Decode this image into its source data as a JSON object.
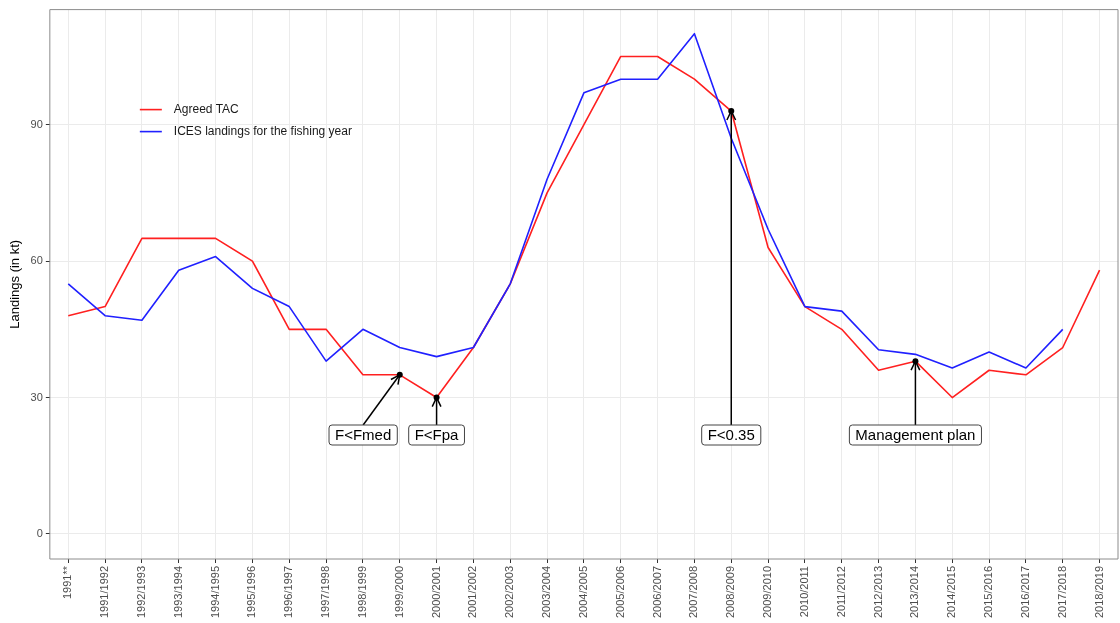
{
  "chart_data": {
    "type": "line",
    "ylabel": "Landings (in kt)",
    "categories": [
      "1991**",
      "1991/1992",
      "1992/1993",
      "1993/1994",
      "1994/1995",
      "1995/1996",
      "1996/1997",
      "1997/1998",
      "1998/1999",
      "1999/2000",
      "2000/2001",
      "2001/2002",
      "2002/2003",
      "2003/2004",
      "2004/2005",
      "2005/2006",
      "2006/2007",
      "2007/2008",
      "2008/2009",
      "2009/2010",
      "2010/2011",
      "2011/2012",
      "2012/2013",
      "2013/2014",
      "2014/2015",
      "2015/2016",
      "2016/2017",
      "2017/2018",
      "2018/2019"
    ],
    "series": [
      {
        "name": "Agreed TAC",
        "color": "#ff2020",
        "values": [
          48,
          50,
          65,
          65,
          65,
          60,
          45,
          45,
          35,
          35,
          30,
          41,
          55,
          75,
          90,
          105,
          105,
          100,
          93,
          63,
          50,
          45,
          36,
          38,
          30,
          36,
          35,
          41,
          58
        ]
      },
      {
        "name": "ICES landings for the fishing year",
        "color": "#2020ff",
        "values": [
          55,
          48,
          47,
          58,
          61,
          54,
          50,
          38,
          45,
          41,
          39,
          41,
          55,
          78,
          97,
          100,
          100,
          110,
          87,
          67,
          50,
          49,
          40.5,
          39.5,
          36.5,
          40,
          36.5,
          45,
          null
        ]
      }
    ],
    "ylim": [
      -5.5,
      115.3
    ],
    "yticks": [
      0,
      30,
      60,
      90
    ],
    "grid": true,
    "legend": "top left",
    "line_style": "solid",
    "annotations": [
      {
        "text": "F<Fmed",
        "x": "1999/2000",
        "y": 35
      },
      {
        "text": "F<Fpa",
        "x": "2000/2001",
        "y": 30
      },
      {
        "text": "F<0.35",
        "x": "2008/2009",
        "y": 93
      },
      {
        "text": "Management plan",
        "x": "2013/2014",
        "y": 38
      }
    ]
  }
}
